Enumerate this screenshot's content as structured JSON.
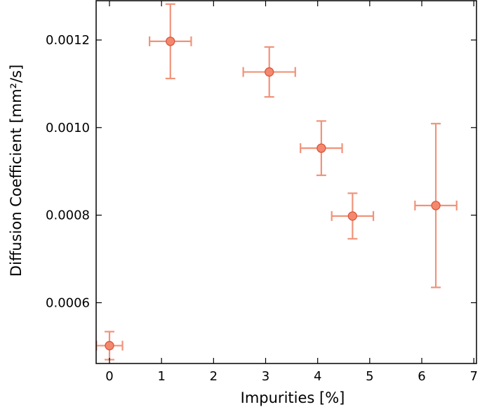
{
  "chart_data": {
    "type": "scatter",
    "xlabel": "Impurities [%]",
    "ylabel": "Diffusion Coefficient  [mm²/s]",
    "xlim": [
      -0.25,
      7.0
    ],
    "ylim": [
      0.00046,
      0.00129
    ],
    "xticks": [
      0,
      1,
      2,
      3,
      4,
      5,
      6,
      7
    ],
    "yticks": [
      0.0006,
      0.0008,
      0.001,
      0.0012
    ],
    "xtick_labels": [
      "0",
      "1",
      "2",
      "3",
      "4",
      "5",
      "6",
      "7"
    ],
    "ytick_labels": [
      "0.0006",
      "0.0008",
      "0.0010",
      "0.0012"
    ],
    "grid": false,
    "marker_fill": "#f4886e",
    "marker_edge": "#d9553a",
    "errorbar_color": "#f0937a",
    "points": [
      {
        "x": 0.0,
        "y": 0.000502,
        "xerr": 0.25,
        "yerr": 3.2e-05
      },
      {
        "x": 1.17,
        "y": 0.001197,
        "xerr": 0.4,
        "yerr": 8.5e-05
      },
      {
        "x": 3.07,
        "y": 0.001127,
        "xerr": 0.5,
        "yerr": 5.7e-05
      },
      {
        "x": 4.07,
        "y": 0.000953,
        "xerr": 0.4,
        "yerr": 6.2e-05
      },
      {
        "x": 4.67,
        "y": 0.000798,
        "xerr": 0.4,
        "yerr": 5.2e-05
      },
      {
        "x": 6.27,
        "y": 0.000822,
        "xerr": 0.4,
        "yerr": 0.000187
      }
    ]
  }
}
